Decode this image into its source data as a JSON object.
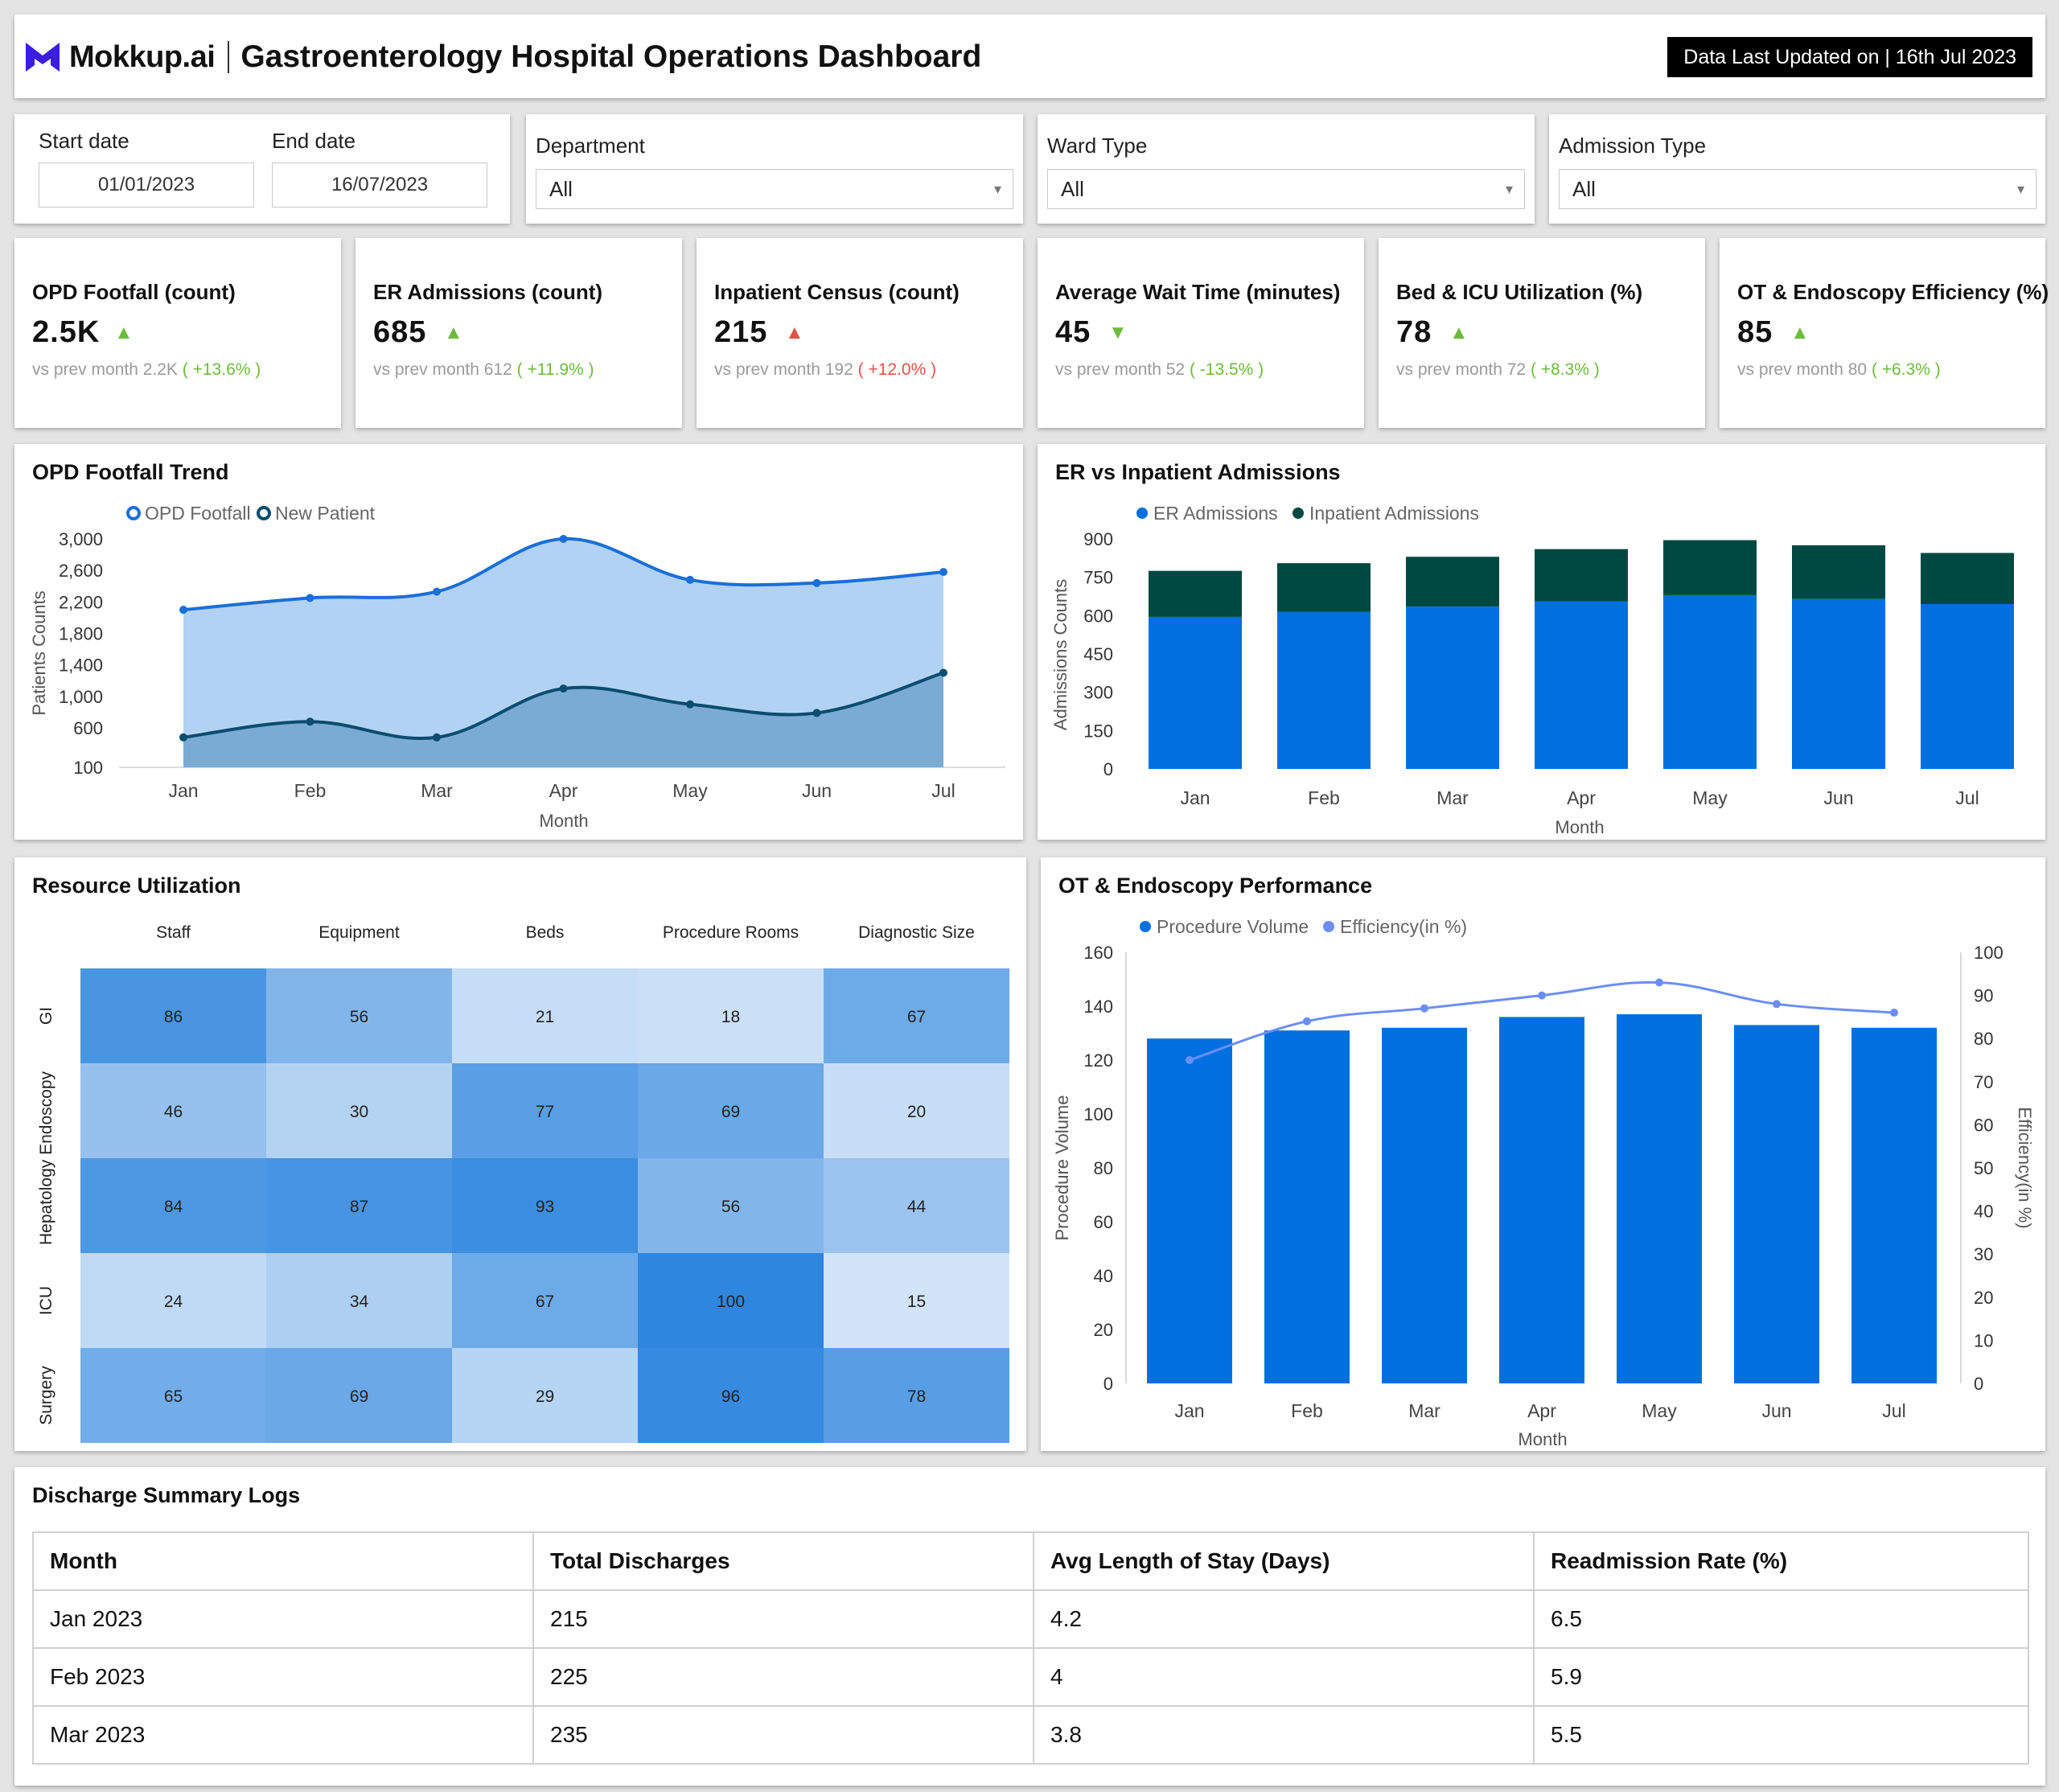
{
  "header": {
    "brand": "Mokkup.ai",
    "title": "Gastroenterology Hospital Operations Dashboard",
    "updated": "Data Last Updated on | 16th Jul 2023",
    "brand_color": "#3b1ee0"
  },
  "filters": {
    "start_label": "Start date",
    "start_value": "01/01/2023",
    "end_label": "End date",
    "end_value": "16/07/2023",
    "department_label": "Department",
    "department_value": "All",
    "ward_label": "Ward Type",
    "ward_value": "All",
    "admission_label": "Admission Type",
    "admission_value": "All"
  },
  "kpis": [
    {
      "title": "OPD Footfall (count)",
      "value": "2.5K",
      "trend": "up",
      "status": "good",
      "prev_label": "vs prev month",
      "prev_value": "2.2K",
      "change": "( +13.6% )"
    },
    {
      "title": "ER Admissions (count)",
      "value": "685",
      "trend": "up",
      "status": "good",
      "prev_label": "vs prev month",
      "prev_value": "612",
      "change": "( +11.9% )"
    },
    {
      "title": "Inpatient Census (count)",
      "value": "215",
      "trend": "up",
      "status": "bad",
      "prev_label": "vs prev month",
      "prev_value": "192",
      "change": "( +12.0% )"
    },
    {
      "title": "Average Wait Time (minutes)",
      "value": "45",
      "trend": "down",
      "status": "good",
      "prev_label": "vs prev month",
      "prev_value": "52",
      "change": "( -13.5% )"
    },
    {
      "title": "Bed & ICU Utilization (%)",
      "value": "78",
      "trend": "up",
      "status": "good",
      "prev_label": "vs prev month",
      "prev_value": "72",
      "change": "( +8.3% )"
    },
    {
      "title": "OT & Endoscopy Efficiency (%)",
      "value": "85",
      "trend": "up",
      "status": "good",
      "prev_label": "vs prev month",
      "prev_value": "80",
      "change": "( +6.3% )"
    }
  ],
  "panels": {
    "opd_title": "OPD Footfall Trend",
    "er_title": "ER vs Inpatient Admissions",
    "resource_title": "Resource Utilization",
    "ot_title": "OT & Endoscopy Performance",
    "logs_title": "Discharge Summary Logs"
  },
  "chart_data": [
    {
      "id": "opd",
      "type": "area",
      "title": "OPD Footfall Trend",
      "xlabel": "Month",
      "ylabel": "Patients Counts",
      "categories": [
        "Jan",
        "Feb",
        "Mar",
        "Apr",
        "May",
        "Jun",
        "Jul"
      ],
      "y_ticks": [
        "3,000",
        "2,600",
        "2,200",
        "1,800",
        "1,400",
        "1,000",
        "600",
        "100"
      ],
      "ylim": [
        100,
        3000
      ],
      "legend": "top-left",
      "series": [
        {
          "name": "OPD Footfall",
          "color": "#1a6fd8",
          "fill": "#b2d2f4",
          "values": [
            2100,
            2250,
            2330,
            3000,
            2480,
            2440,
            2580
          ]
        },
        {
          "name": "New Patient",
          "color": "#0b4d6e",
          "fill": "#7aabd3",
          "values": [
            480,
            680,
            480,
            1100,
            900,
            790,
            1300
          ]
        }
      ]
    },
    {
      "id": "er",
      "type": "bar",
      "stacked": true,
      "title": "ER vs Inpatient Admissions",
      "xlabel": "Month",
      "ylabel": "Admissions Counts",
      "categories": [
        "Jan",
        "Feb",
        "Mar",
        "Apr",
        "May",
        "Jun",
        "Jul"
      ],
      "y_ticks": [
        "900",
        "750",
        "600",
        "450",
        "300",
        "150",
        "0"
      ],
      "ylim": [
        0,
        900
      ],
      "legend": "top-left",
      "series": [
        {
          "name": "ER Admissions",
          "color": "#0070e0",
          "values": [
            595,
            615,
            635,
            655,
            680,
            665,
            645
          ]
        },
        {
          "name": "Inpatient Admissions",
          "color": "#004943",
          "values": [
            180,
            190,
            195,
            205,
            215,
            210,
            200
          ]
        }
      ]
    },
    {
      "id": "resource",
      "type": "heatmap",
      "title": "Resource Utilization",
      "columns": [
        "Staff",
        "Equipment",
        "Beds",
        "Procedure Rooms",
        "Diagnostic Size"
      ],
      "rows": [
        "GI",
        "Hepatology Endoscopy",
        "Hepatology Endoscopy",
        "ICU",
        "Surgery"
      ],
      "row_labels_shown": [
        "GI",
        "Hepatology Endoscopy",
        "ICU",
        "Surgery"
      ],
      "values": [
        [
          86,
          56,
          21,
          18,
          67
        ],
        [
          46,
          30,
          77,
          69,
          20
        ],
        [
          84,
          87,
          93,
          56,
          44
        ],
        [
          24,
          34,
          67,
          100,
          15
        ],
        [
          65,
          69,
          29,
          96,
          78
        ]
      ]
    },
    {
      "id": "ot",
      "type": "bar",
      "title": "OT & Endoscopy Performance",
      "xlabel": "Month",
      "ylabel": "Procedure Volume",
      "y2label": "Efficiency(in %)",
      "categories": [
        "Jan",
        "Feb",
        "Mar",
        "Apr",
        "May",
        "Jun",
        "Jul"
      ],
      "y_ticks": [
        "160",
        "140",
        "120",
        "100",
        "80",
        "60",
        "40",
        "20",
        "0"
      ],
      "y2_ticks": [
        "100",
        "90",
        "80",
        "70",
        "60",
        "50",
        "40",
        "30",
        "20",
        "10",
        "0"
      ],
      "ylim": [
        0,
        160
      ],
      "y2lim": [
        0,
        100
      ],
      "legend": "top-left",
      "series": [
        {
          "name": "Procedure Volume",
          "kind": "bar",
          "color": "#0070e0",
          "values": [
            128,
            131,
            132,
            136,
            137,
            133,
            132
          ]
        },
        {
          "name": "Efficiency(in %)",
          "kind": "line",
          "color": "#6b8ef5",
          "values": [
            75,
            84,
            87,
            90,
            93,
            88,
            86
          ]
        }
      ]
    }
  ],
  "logs": {
    "columns": [
      "Month",
      "Total Discharges",
      "Avg Length of Stay (Days)",
      "Readmission Rate (%)"
    ],
    "rows": [
      [
        "Jan 2023",
        "215",
        "4.2",
        "6.5"
      ],
      [
        "Feb 2023",
        "225",
        "4",
        "5.9"
      ],
      [
        "Mar 2023",
        "235",
        "3.8",
        "5.5"
      ]
    ]
  }
}
